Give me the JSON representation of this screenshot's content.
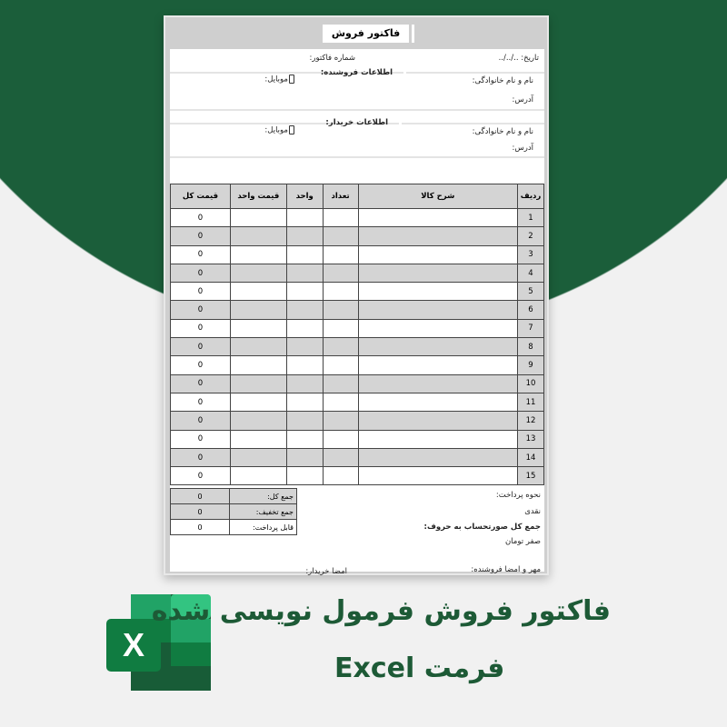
{
  "colors": {
    "brand_green": "#1b5e3a",
    "heading_green": "#1d5a36",
    "row_gray": "#d4d4d4"
  },
  "invoice": {
    "title": "فاکتور فروش",
    "date": "تاریخ: ../../..",
    "invoice_number": "شماره فاکتور:",
    "seller": {
      "heading": "اطلاعات فروشنده:",
      "name": "نام و نام خانوادگی:",
      "mobile": "موبایل:",
      "address": "آدرس:"
    },
    "buyer": {
      "heading": "اطلاعات خریدار:",
      "name": "نام و نام خانوادگی:",
      "mobile": "موبایل:",
      "address": "آدرس:"
    },
    "table": {
      "headers": [
        "ردیف",
        "شرح کالا",
        "تعداد",
        "واحد",
        "قیمت واحد",
        "قیمت کل"
      ],
      "rows": [
        [
          "1",
          "0"
        ],
        [
          "2",
          "0"
        ],
        [
          "3",
          "0"
        ],
        [
          "4",
          "0"
        ],
        [
          "5",
          "0"
        ],
        [
          "6",
          "0"
        ],
        [
          "7",
          "0"
        ],
        [
          "8",
          "0"
        ],
        [
          "9",
          "0"
        ],
        [
          "10",
          "0"
        ],
        [
          "11",
          "0"
        ],
        [
          "12",
          "0"
        ],
        [
          "13",
          "0"
        ],
        [
          "14",
          "0"
        ],
        [
          "15",
          "0"
        ]
      ]
    },
    "totals": [
      {
        "label": "جمع کل:",
        "value": "0"
      },
      {
        "label": "جمع تخفیف:",
        "value": "0"
      },
      {
        "label": "قابل پرداخت:",
        "value": "0"
      }
    ],
    "payment_method_label": "نحوه پرداخت:",
    "payment_method": "نقدی",
    "total_in_words_label": "جمع کل صورتحساب به حروف:",
    "total_in_words": "صفر تومان",
    "seller_signature": "مهر و امضا فروشنده:",
    "buyer_signature": "امضا خریدار:"
  },
  "promo": {
    "headline": "فاکتور فروش فرمول نویسی شده",
    "subline": "فرمت Excel",
    "logo_letter": "X"
  }
}
